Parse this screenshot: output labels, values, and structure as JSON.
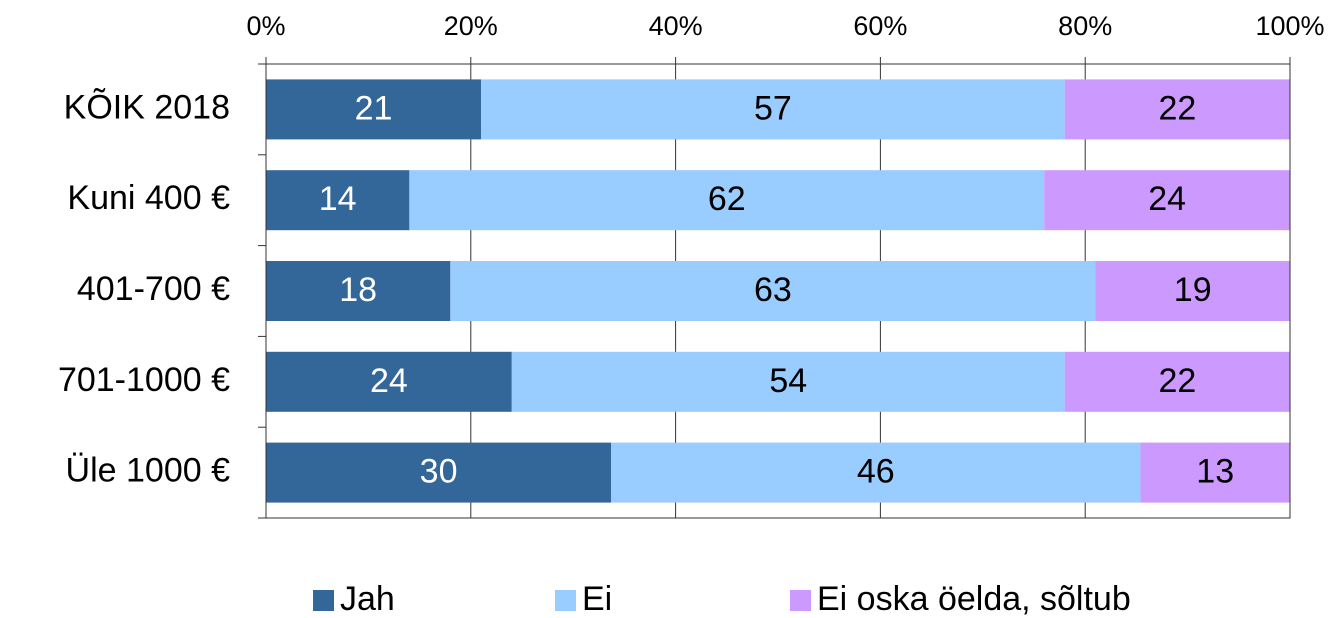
{
  "chart_data": {
    "type": "bar",
    "orientation": "horizontal",
    "stack": "percent",
    "categories": [
      "KÕIK 2018",
      "Kuni 400 €",
      "401-700 €",
      "701-1000 €",
      "Üle 1000 €"
    ],
    "series": [
      {
        "name": "Jah",
        "color": "#336699",
        "label_color": "#ffffff",
        "values": [
          21,
          14,
          18,
          24,
          30
        ]
      },
      {
        "name": "Ei",
        "color": "#99ccff",
        "label_color": "#000000",
        "values": [
          57,
          62,
          63,
          54,
          46
        ]
      },
      {
        "name": "Ei oska öelda, sõltub",
        "color": "#cc99ff",
        "label_color": "#000000",
        "values": [
          22,
          24,
          19,
          22,
          13
        ]
      }
    ],
    "xlim": [
      0,
      100
    ],
    "xticks": [
      {
        "value": 0,
        "label": "0%"
      },
      {
        "value": 20,
        "label": "20%"
      },
      {
        "value": 40,
        "label": "40%"
      },
      {
        "value": 60,
        "label": "60%"
      },
      {
        "value": 80,
        "label": "80%"
      },
      {
        "value": 100,
        "label": "100%"
      }
    ],
    "grid": true,
    "legend": "bottom"
  }
}
